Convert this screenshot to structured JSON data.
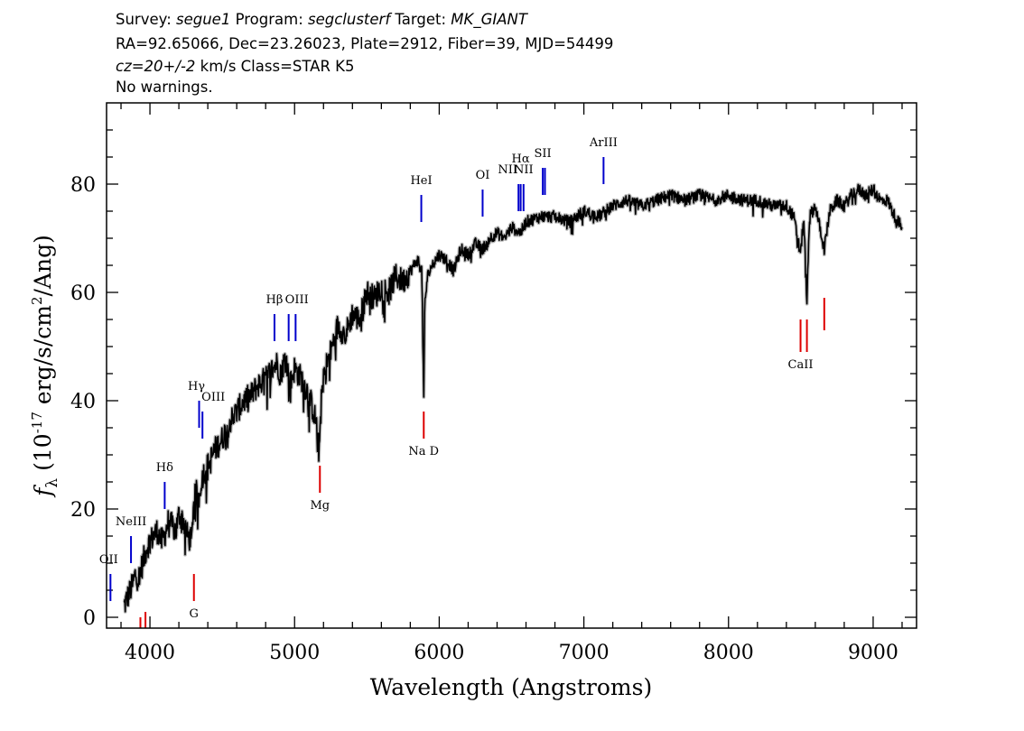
{
  "header": {
    "line1": [
      {
        "text": "Survey: ",
        "italic": false
      },
      {
        "text": "segue1",
        "italic": true
      },
      {
        "text": " Program: ",
        "italic": false
      },
      {
        "text": "segclusterf",
        "italic": true
      },
      {
        "text": " Target: ",
        "italic": false
      },
      {
        "text": "MK_GIANT",
        "italic": true
      }
    ],
    "line2": "RA=92.65066, Dec=23.26023, Plate=2912, Fiber=39, MJD=54499",
    "line3": [
      {
        "text": "cz=20+/-2",
        "italic": true
      },
      {
        "text": " km/s Class=STAR K5",
        "italic": false
      }
    ],
    "line4": "No warnings."
  },
  "chart_data": {
    "type": "line",
    "title": "",
    "xlabel": "Wavelength (Angstroms)",
    "ylabel_parts": {
      "f": "f",
      "sub": "λ",
      "rest1": " (10",
      "exp1": "-17",
      "rest2": " erg/s/cm",
      "exp2": "2",
      "rest3": "/Ang)"
    },
    "xlim": [
      3700,
      9300
    ],
    "ylim": [
      -2,
      95
    ],
    "x_ticks": [
      4000,
      5000,
      6000,
      7000,
      8000,
      9000
    ],
    "x_tick_labels": [
      "4000",
      "5000",
      "6000",
      "7000",
      "8000",
      "9000"
    ],
    "y_ticks": [
      0,
      20,
      40,
      60,
      80
    ],
    "y_tick_labels": [
      "0",
      "20",
      "40",
      "60",
      "80"
    ],
    "series": [
      {
        "color": "#000000",
        "x": [
          3820,
          3850,
          3880,
          3900,
          3920,
          3950,
          3980,
          4000,
          4050,
          4080,
          4100,
          4130,
          4150,
          4180,
          4200,
          4230,
          4260,
          4290,
          4300,
          4320,
          4340,
          4360,
          4380,
          4400,
          4450,
          4500,
          4550,
          4600,
          4650,
          4700,
          4750,
          4800,
          4850,
          4880,
          4900,
          4940,
          4970,
          5000,
          5050,
          5100,
          5150,
          5170,
          5180,
          5200,
          5250,
          5300,
          5350,
          5400,
          5450,
          5500,
          5550,
          5600,
          5650,
          5700,
          5750,
          5800,
          5850,
          5880,
          5893,
          5900,
          5920,
          5950,
          6000,
          6050,
          6100,
          6150,
          6200,
          6250,
          6300,
          6350,
          6400,
          6450,
          6500,
          6563,
          6600,
          6700,
          6800,
          6900,
          7000,
          7100,
          7200,
          7300,
          7400,
          7500,
          7600,
          7700,
          7800,
          7900,
          8000,
          8100,
          8200,
          8300,
          8400,
          8450,
          8498,
          8520,
          8542,
          8560,
          8600,
          8662,
          8700,
          8750,
          8800,
          8850,
          8900,
          8950,
          9000,
          9050,
          9100,
          9150,
          9200
        ],
        "values": [
          2,
          4,
          6,
          8,
          7,
          10,
          13,
          14,
          16,
          14,
          15,
          18,
          17,
          16,
          19,
          18,
          15,
          14,
          21,
          23,
          22,
          26,
          27,
          28,
          31,
          33,
          36,
          38,
          40,
          41,
          43,
          44,
          46,
          47,
          45,
          48,
          43,
          46,
          44,
          41,
          36,
          30,
          38,
          45,
          49,
          54,
          52,
          56,
          55,
          60,
          59,
          61,
          60,
          63,
          62,
          64,
          66,
          64,
          41,
          58,
          63,
          65,
          67,
          66,
          64,
          68,
          67,
          69,
          68,
          70,
          71,
          70,
          72,
          71,
          73,
          74,
          74,
          73,
          75,
          74,
          76,
          77,
          76,
          77,
          78,
          77,
          78,
          77,
          78,
          77,
          77,
          76,
          76,
          74,
          67,
          74,
          58,
          74,
          76,
          68,
          75,
          77,
          76,
          78,
          79,
          78,
          79,
          77,
          77,
          74,
          72
        ]
      }
    ],
    "emission_lines": [
      {
        "label": "OII",
        "lambda": 3727,
        "y_bottom": 3,
        "y_top": 8,
        "label_y": 10,
        "label_dx": -2,
        "label_anchor": "middle"
      },
      {
        "label": "NeIII",
        "lambda": 3869,
        "y_bottom": 10,
        "y_top": 15,
        "label_y": 17,
        "label_dx": 0,
        "label_anchor": "middle"
      },
      {
        "label": "Hδ",
        "lambda": 4102,
        "y_bottom": 20,
        "y_top": 25,
        "label_y": 27,
        "label_dx": 0,
        "label_anchor": "middle"
      },
      {
        "label": "Hγ",
        "lambda": 4340,
        "y_bottom": 35,
        "y_top": 40,
        "label_y": 42,
        "label_dx": -3,
        "label_anchor": "middle"
      },
      {
        "label": "OIII",
        "lambda": 4363,
        "y_bottom": 33,
        "y_top": 38,
        "label_y": 40,
        "label_dx": 12,
        "label_anchor": "middle"
      },
      {
        "label": "Hβ",
        "lambda": 4861,
        "y_bottom": 51,
        "y_top": 56,
        "label_y": 58,
        "label_dx": 0,
        "label_anchor": "middle"
      },
      {
        "label": "OIII",
        "lambda": 4959,
        "y_bottom": 51,
        "y_top": 56,
        "label_y": 58,
        "label_dx": 0,
        "label_anchor": "start"
      },
      {
        "label": "",
        "lambda": 5007,
        "y_bottom": 51,
        "y_top": 56,
        "label_y": 58,
        "label_dx": 0,
        "label_anchor": "middle"
      },
      {
        "label": "HeI",
        "lambda": 5876,
        "y_bottom": 73,
        "y_top": 78,
        "label_y": 80,
        "label_dx": 0,
        "label_anchor": "middle"
      },
      {
        "label": "OI",
        "lambda": 6300,
        "y_bottom": 74,
        "y_top": 79,
        "label_y": 81,
        "label_dx": 0,
        "label_anchor": "middle"
      },
      {
        "label": "NII",
        "lambda": 6548,
        "y_bottom": 75,
        "y_top": 80,
        "label_y": 82,
        "label_dx": -12,
        "label_anchor": "middle"
      },
      {
        "label": "Hα",
        "lambda": 6563,
        "y_bottom": 75,
        "y_top": 80,
        "label_y": 84,
        "label_dx": 0,
        "label_anchor": "middle"
      },
      {
        "label": "NII",
        "lambda": 6583,
        "y_bottom": 75,
        "y_top": 80,
        "label_y": 82,
        "label_dx": 0,
        "label_anchor": "middle"
      },
      {
        "label": "SII",
        "lambda": 6716,
        "y_bottom": 78,
        "y_top": 83,
        "label_y": 85,
        "label_dx": 0,
        "label_anchor": "middle"
      },
      {
        "label": "",
        "lambda": 6731,
        "y_bottom": 78,
        "y_top": 83,
        "label_y": 85,
        "label_dx": 0,
        "label_anchor": "middle"
      },
      {
        "label": "ArIII",
        "lambda": 7136,
        "y_bottom": 80,
        "y_top": 85,
        "label_y": 87,
        "label_dx": 0,
        "label_anchor": "middle"
      }
    ],
    "absorption_lines": [
      {
        "label": "",
        "lambda": 3934,
        "y_bottom": -2,
        "y_top": 0,
        "label_y": -4
      },
      {
        "label": "",
        "lambda": 3969,
        "y_bottom": -2,
        "y_top": 1,
        "label_y": -4
      },
      {
        "label": "G",
        "lambda": 4304,
        "y_bottom": 3,
        "y_top": 8,
        "label_y": 0
      },
      {
        "label": "Mg",
        "lambda": 5175,
        "y_bottom": 23,
        "y_top": 28,
        "label_y": 20
      },
      {
        "label": "Na D",
        "lambda": 5893,
        "y_bottom": 33,
        "y_top": 38,
        "label_y": 30
      },
      {
        "label": "CaII",
        "lambda": 8498,
        "y_bottom": 49,
        "y_top": 55,
        "label_y": 46
      },
      {
        "label": "",
        "lambda": 8542,
        "y_bottom": 49,
        "y_top": 55,
        "label_y": 46
      },
      {
        "label": "",
        "lambda": 8662,
        "y_bottom": 53,
        "y_top": 59,
        "label_y": 46
      }
    ],
    "colors": {
      "spectrum": "#000000",
      "error": "#bbbbbb",
      "emission": "#0000cc",
      "absorption": "#dd0000"
    }
  }
}
